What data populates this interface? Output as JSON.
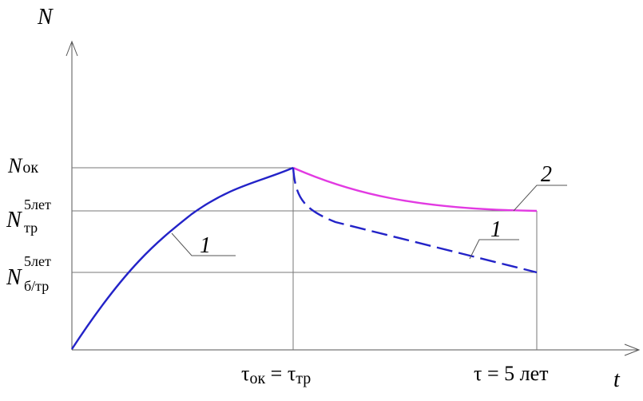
{
  "chart_data": {
    "type": "line",
    "axes": {
      "y_label": "N",
      "x_label": "t"
    },
    "y_levels": {
      "n_ok": {
        "base": "N",
        "sub": "ок"
      },
      "n_tr": {
        "base": "N",
        "sup": "5лет",
        "sub": "тр"
      },
      "n_btr": {
        "base": "N",
        "sup": "5лет",
        "sub": "б/тр"
      }
    },
    "x_markers": {
      "tau_ok": {
        "a": "τ",
        "a_sub": "ок",
        "eq": " = ",
        "b": "τ",
        "b_sub": "тр"
      },
      "tau_5": "τ = 5 лет"
    },
    "series": [
      {
        "label": "1",
        "color": "#2323c8",
        "style": "solid"
      },
      {
        "label": "2",
        "color": "#e23ae2",
        "style": "solid"
      },
      {
        "label": "1",
        "color": "#2323c8",
        "style": "dashed"
      }
    ]
  }
}
